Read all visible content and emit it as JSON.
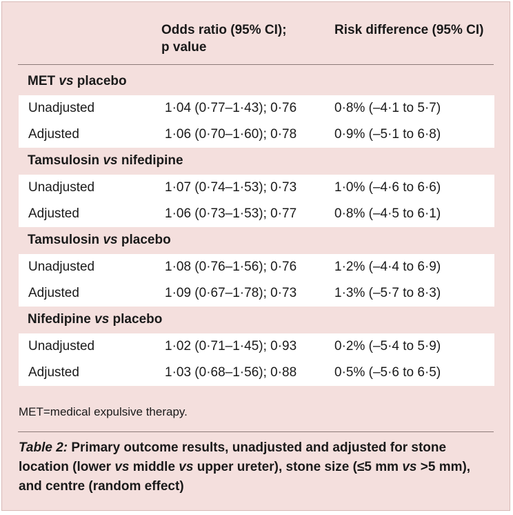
{
  "header": {
    "col2_line1": "Odds ratio (95% CI);",
    "col2_line2": "p value",
    "col3": "Risk difference (95% CI)"
  },
  "sections": [
    {
      "title_a": "MET ",
      "title_vs": "vs",
      "title_b": " placebo",
      "rows": [
        {
          "label": "Unadjusted",
          "or": "1·04 (0·77–1·43); 0·76",
          "rd": "0·8% (–4·1 to 5·7)"
        },
        {
          "label": "Adjusted",
          "or": "1·06 (0·70–1·60); 0·78",
          "rd": "0·9% (–5·1 to 6·8)"
        }
      ]
    },
    {
      "title_a": "Tamsulosin ",
      "title_vs": "vs",
      "title_b": " nifedipine",
      "rows": [
        {
          "label": "Unadjusted",
          "or": "1·07 (0·74–1·53); 0·73",
          "rd": "1·0% (–4·6 to 6·6)"
        },
        {
          "label": "Adjusted",
          "or": "1·06 (0·73–1·53); 0·77",
          "rd": "0·8% (–4·5 to 6·1)"
        }
      ]
    },
    {
      "title_a": "Tamsulosin ",
      "title_vs": "vs",
      "title_b": " placebo",
      "rows": [
        {
          "label": "Unadjusted",
          "or": "1·08 (0·76–1·56); 0·76",
          "rd": "1·2% (–4·4 to 6·9)"
        },
        {
          "label": "Adjusted",
          "or": "1·09 (0·67–1·78); 0·73",
          "rd": "1·3% (–5·7 to 8·3)"
        }
      ]
    },
    {
      "title_a": "Nifedipine ",
      "title_vs": "vs",
      "title_b": " placebo",
      "rows": [
        {
          "label": "Unadjusted",
          "or": "1·02 (0·71–1·45); 0·93",
          "rd": "0·2% (–5·4 to 5·9)"
        },
        {
          "label": "Adjusted",
          "or": "1·03 (0·68–1·56); 0·88",
          "rd": "0·5% (–5·6 to 6·5)"
        }
      ]
    }
  ],
  "footnote": "MET=medical expulsive therapy.",
  "caption": {
    "label": "Table 2:",
    "p1": " Primary outcome results, unadjusted and adjusted for stone location (lower ",
    "vs1": "vs",
    "p2": " middle ",
    "vs2": "vs",
    "p3": " upper ureter), stone size (≤5 mm ",
    "vs3": "vs",
    "p4": " >5 mm), and centre (random effect)"
  },
  "colors": {
    "panel_bg": "#f4dfdd",
    "band_bg": "#ffffff",
    "rule": "#8c7a78"
  }
}
